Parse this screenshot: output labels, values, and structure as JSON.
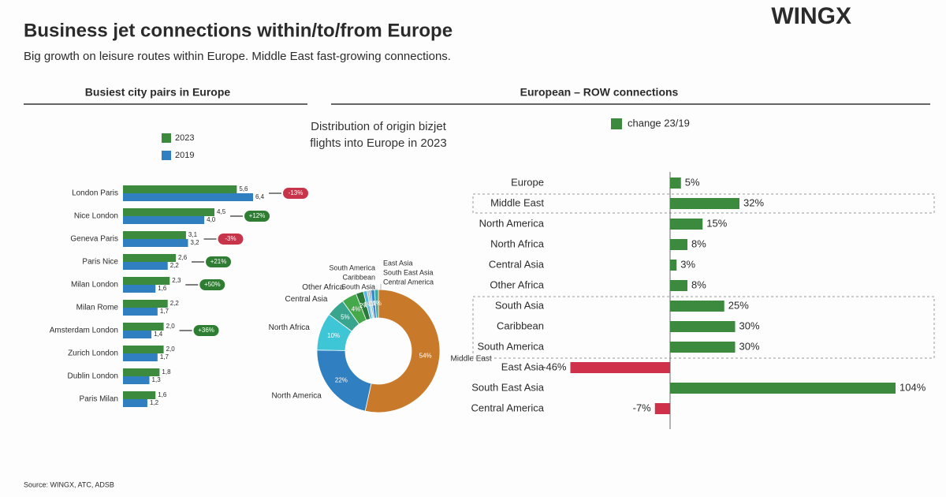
{
  "header": {
    "title": "Business jet connections within/to/from Europe",
    "subtitle": "Big growth on leisure routes within Europe. Middle East fast-growing connections.",
    "logo": "WINGX",
    "source": "Source: WINGX, ATC, ADSB"
  },
  "chart_data": [
    {
      "type": "hbar",
      "title": "Busiest city pairs in Europe",
      "categories": [
        "London Paris",
        "Nice London",
        "Geneva Paris",
        "Paris Nice",
        "Milan London",
        "Milan Rome",
        "Amsterdam London",
        "Zurich London",
        "Dublin London",
        "Paris Milan"
      ],
      "series": [
        {
          "name": "2023",
          "color": "#3b8a3e",
          "values": [
            5.6,
            4.5,
            3.1,
            2.6,
            2.3,
            2.2,
            2.0,
            2.0,
            1.8,
            1.6
          ],
          "value_labels": [
            "5,6",
            "4,5",
            "3,1",
            "2,6",
            "2,3",
            "2,2",
            "2,0",
            "2,0",
            "1,8",
            "1,6"
          ]
        },
        {
          "name": "2019",
          "color": "#2f7fc1",
          "values": [
            6.4,
            4.0,
            3.2,
            2.2,
            1.6,
            1.7,
            1.4,
            1.7,
            1.3,
            1.2
          ],
          "value_labels": [
            "6,4",
            "4,0",
            "3,2",
            "2,2",
            "1,6",
            "1,7",
            "1,4",
            "1,7",
            "1,3",
            "1,2"
          ]
        }
      ],
      "change_labels": [
        "-13%",
        "+12%",
        "-3%",
        "+21%",
        "+50%",
        null,
        "+36%",
        null,
        null,
        null
      ],
      "positive_color": "#2f7d32",
      "negative_color": "#c8344a"
    },
    {
      "type": "donut",
      "title": "Distribution of origin bizjet flights into Europe in 2023",
      "categories": [
        "Middle East",
        "North America",
        "North Africa",
        "Central Asia",
        "Other Africa",
        "South Asia",
        "Caribbean",
        "South America",
        "East Asia",
        "South East Asia",
        "Central America"
      ],
      "values": [
        54,
        22,
        10,
        5,
        4,
        2,
        1,
        0.5,
        0.5,
        1,
        1
      ],
      "value_labels": [
        "54%",
        "22%",
        "10%",
        "5%",
        "4%",
        "2%",
        "1%",
        null,
        null,
        "1%",
        "1%"
      ],
      "colors": [
        "#c87a2a",
        "#2f7fc1",
        "#3fc6d6",
        "#3aa58f",
        "#45a84a",
        "#2c7a3a",
        "#59b6e6",
        "#9ac4a8",
        "#7aa7d8",
        "#3b88cf",
        "#3aa9a0"
      ]
    },
    {
      "type": "hbar-change",
      "title": "European – ROW connections",
      "legend": "change 23/19",
      "categories": [
        "Europe",
        "Middle East",
        "North America",
        "North Africa",
        "Central Asia",
        "Other Africa",
        "South Asia",
        "Caribbean",
        "South America",
        "East Asia",
        "South East Asia",
        "Central America"
      ],
      "values": [
        5,
        32,
        15,
        8,
        3,
        8,
        25,
        30,
        30,
        -46,
        104,
        -7
      ],
      "value_labels": [
        "5%",
        "32%",
        "15%",
        "8%",
        "3%",
        "8%",
        "25%",
        "30%",
        "30%",
        "-46%",
        "104%",
        "-7%"
      ],
      "color": "#3b8a3e",
      "negative_color": "#d0314a"
    }
  ]
}
